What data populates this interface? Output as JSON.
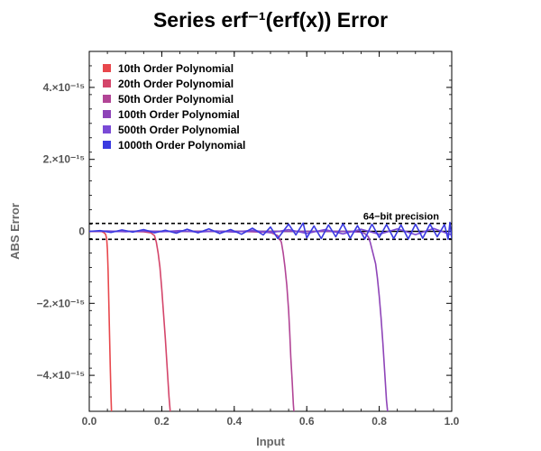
{
  "chart_data": {
    "type": "line",
    "title": "Series erf⁻¹(erf(x)) Error",
    "xlabel": "Input",
    "ylabel": "ABS Error",
    "xlim": [
      0.0,
      1.0
    ],
    "ylim": [
      -5e-15,
      5e-15
    ],
    "x_ticks": [
      0.0,
      0.2,
      0.4,
      0.6,
      0.8,
      1.0
    ],
    "x_tick_labels": [
      "0.0",
      "0.2",
      "0.4",
      "0.6",
      "0.8",
      "1.0"
    ],
    "y_ticks": [
      4e-15,
      2e-15,
      0,
      -2e-15,
      -4e-15
    ],
    "y_tick_labels": [
      "4.×10⁻¹⁵",
      "2.×10⁻¹⁵",
      "0",
      "−2.×10⁻¹⁵",
      "−4.×10⁻¹⁵"
    ],
    "grid": false,
    "legend_position": "top-left",
    "reference_lines": {
      "values": [
        2.2e-16,
        -2.2e-16
      ],
      "label": "64−bit precision",
      "style": "dashed",
      "color": "#000000"
    },
    "series": [
      {
        "name": "10th Order Polynomial",
        "color": "#e8474c",
        "x": [
          0.0,
          0.01,
          0.02,
          0.03,
          0.035,
          0.04,
          0.045,
          0.048,
          0.05,
          0.052,
          0.054,
          0.056,
          0.058,
          0.06,
          0.062
        ],
        "y": [
          0,
          0,
          0,
          0,
          -1e-17,
          -3e-17,
          -8e-17,
          -2e-16,
          -5e-16,
          -1.1e-15,
          -2e-15,
          -2.9e-15,
          -3.8e-15,
          -4.6e-15,
          -5.2e-15
        ]
      },
      {
        "name": "20th Order Polynomial",
        "color": "#d4456a",
        "x": [
          0.0,
          0.05,
          0.1,
          0.15,
          0.17,
          0.18,
          0.185,
          0.19,
          0.195,
          0.2,
          0.205,
          0.21,
          0.215,
          0.22,
          0.225
        ],
        "y": [
          0,
          0,
          0,
          -1e-17,
          -4e-17,
          -1.2e-16,
          -3e-16,
          -6e-16,
          -1e-15,
          -1.6e-15,
          -2.3e-15,
          -3e-15,
          -3.8e-15,
          -4.6e-15,
          -5.2e-15
        ]
      },
      {
        "name": "50th Order Polynomial",
        "color": "#b24596",
        "x": [
          0.0,
          0.1,
          0.2,
          0.3,
          0.4,
          0.45,
          0.5,
          0.52,
          0.53,
          0.535,
          0.54,
          0.545,
          0.55,
          0.553,
          0.556,
          0.56,
          0.563,
          0.566
        ],
        "y": [
          0,
          0,
          0,
          0,
          0,
          -1e-17,
          -3e-17,
          -1.2e-16,
          -3e-16,
          -6e-16,
          -1e-15,
          -1.5e-15,
          -2.2e-15,
          -2.8e-15,
          -3.5e-15,
          -4.2e-15,
          -4.8e-15,
          -5.2e-15
        ]
      },
      {
        "name": "100th Order Polynomial",
        "color": "#8e44b8",
        "x": [
          0.0,
          0.2,
          0.4,
          0.6,
          0.7,
          0.75,
          0.76,
          0.77,
          0.775,
          0.78,
          0.79,
          0.795,
          0.8,
          0.805,
          0.81,
          0.815,
          0.82,
          0.825
        ],
        "y": [
          0,
          0,
          0,
          0,
          0,
          -2e-17,
          -6e-17,
          -1.5e-16,
          -3e-16,
          -5e-16,
          -9e-16,
          -1.3e-15,
          -1.8e-15,
          -2.4e-15,
          -3.1e-15,
          -3.9e-15,
          -4.7e-15,
          -5.2e-15
        ]
      },
      {
        "name": "500th Order Polynomial",
        "color": "#7a4ad6",
        "x": [
          0.0,
          0.05,
          0.1,
          0.15,
          0.2,
          0.25,
          0.3,
          0.35,
          0.4,
          0.45,
          0.5,
          0.55,
          0.6,
          0.65,
          0.7,
          0.75,
          0.8,
          0.85,
          0.9,
          0.95,
          1.0
        ],
        "y": [
          0,
          1e-17,
          -1e-17,
          2e-17,
          -1e-17,
          2e-17,
          -2e-17,
          1e-17,
          -2e-17,
          3e-17,
          -4e-17,
          5e-17,
          -6e-17,
          5e-17,
          -7e-17,
          6e-17,
          -8e-17,
          7e-17,
          -9e-17,
          8e-17,
          -1e-16
        ]
      },
      {
        "name": "1000th Order Polynomial",
        "color": "#3a3ae0",
        "x": [
          0.0,
          0.03,
          0.06,
          0.09,
          0.12,
          0.15,
          0.18,
          0.21,
          0.24,
          0.27,
          0.3,
          0.33,
          0.36,
          0.39,
          0.42,
          0.45,
          0.48,
          0.5,
          0.52,
          0.55,
          0.57,
          0.59,
          0.6,
          0.62,
          0.64,
          0.66,
          0.68,
          0.7,
          0.72,
          0.74,
          0.76,
          0.78,
          0.8,
          0.82,
          0.84,
          0.86,
          0.88,
          0.9,
          0.92,
          0.94,
          0.96,
          0.98,
          0.99,
          0.995,
          1.0
        ],
        "y": [
          0,
          2e-17,
          -3e-17,
          4e-17,
          -2e-17,
          5e-17,
          -4e-17,
          3e-17,
          -5e-17,
          6e-17,
          -4e-17,
          7e-17,
          -6e-17,
          5e-17,
          -8e-17,
          9e-17,
          -1e-16,
          1.2e-16,
          -2e-16,
          2e-16,
          -1e-16,
          2.3e-16,
          -1.8e-16,
          1.5e-16,
          -2e-16,
          1.8e-16,
          -1.5e-16,
          2.1e-16,
          -1.9e-16,
          1.6e-16,
          -2.1e-16,
          2e-16,
          -1.7e-16,
          1.9e-16,
          -2e-16,
          1.8e-16,
          -2.1e-16,
          2e-16,
          -1.9e-16,
          2e-16,
          -1.5e-16,
          1.9e-16,
          -2.2e-16,
          2.5e-16,
          -2e-16
        ]
      }
    ]
  }
}
